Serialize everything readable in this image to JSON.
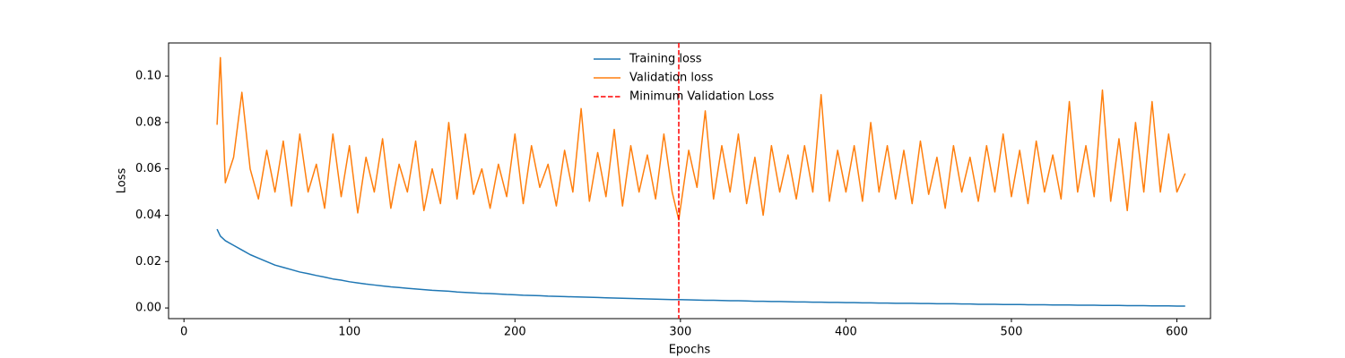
{
  "chart_data": {
    "type": "line",
    "xlabel": "Epochs",
    "ylabel": "Loss",
    "x": [
      20,
      22,
      25,
      30,
      35,
      40,
      45,
      50,
      55,
      60,
      65,
      70,
      75,
      80,
      85,
      90,
      95,
      100,
      105,
      110,
      115,
      120,
      125,
      130,
      135,
      140,
      145,
      150,
      155,
      160,
      165,
      170,
      175,
      180,
      185,
      190,
      195,
      200,
      205,
      210,
      215,
      220,
      225,
      230,
      235,
      240,
      245,
      250,
      255,
      260,
      265,
      270,
      275,
      280,
      285,
      290,
      295,
      299,
      305,
      310,
      315,
      320,
      325,
      330,
      335,
      340,
      345,
      350,
      355,
      360,
      365,
      370,
      375,
      380,
      385,
      390,
      395,
      400,
      405,
      410,
      415,
      420,
      425,
      430,
      435,
      440,
      445,
      450,
      455,
      460,
      465,
      470,
      475,
      480,
      485,
      490,
      495,
      500,
      505,
      510,
      515,
      520,
      525,
      530,
      535,
      540,
      545,
      550,
      555,
      560,
      565,
      570,
      575,
      580,
      585,
      590,
      595,
      600,
      605
    ],
    "series": [
      {
        "name": "Training loss",
        "color": "#1f77b4",
        "values": [
          0.034,
          0.031,
          0.029,
          0.027,
          0.025,
          0.023,
          0.0215,
          0.02,
          0.0185,
          0.0175,
          0.0165,
          0.0155,
          0.0148,
          0.014,
          0.0133,
          0.0125,
          0.012,
          0.0113,
          0.0108,
          0.0103,
          0.0099,
          0.0095,
          0.0091,
          0.0088,
          0.0085,
          0.0082,
          0.0079,
          0.0076,
          0.0074,
          0.0072,
          0.0069,
          0.0067,
          0.0065,
          0.0063,
          0.0062,
          0.006,
          0.0058,
          0.0057,
          0.0055,
          0.0054,
          0.0053,
          0.0051,
          0.005,
          0.0049,
          0.0048,
          0.0047,
          0.0046,
          0.0045,
          0.0044,
          0.0043,
          0.0042,
          0.0041,
          0.004,
          0.0039,
          0.0038,
          0.0037,
          0.0036,
          0.0036,
          0.0035,
          0.0034,
          0.0033,
          0.0033,
          0.0032,
          0.0031,
          0.0031,
          0.003,
          0.0029,
          0.0029,
          0.0028,
          0.0028,
          0.0027,
          0.0026,
          0.0026,
          0.0025,
          0.0025,
          0.0024,
          0.0024,
          0.0023,
          0.0023,
          0.0022,
          0.0022,
          0.0021,
          0.0021,
          0.002,
          0.002,
          0.002,
          0.0019,
          0.0019,
          0.0018,
          0.0018,
          0.0018,
          0.0017,
          0.0017,
          0.0016,
          0.0016,
          0.0016,
          0.0015,
          0.0015,
          0.0015,
          0.0014,
          0.0014,
          0.0014,
          0.0013,
          0.0013,
          0.0013,
          0.0012,
          0.0012,
          0.0012,
          0.0011,
          0.0011,
          0.0011,
          0.001,
          0.001,
          0.001,
          0.0009,
          0.0009,
          0.0009,
          0.0008,
          0.0008
        ]
      },
      {
        "name": "Validation loss",
        "color": "#ff7f0e",
        "values": [
          0.079,
          0.108,
          0.054,
          0.065,
          0.093,
          0.06,
          0.047,
          0.068,
          0.05,
          0.072,
          0.044,
          0.075,
          0.05,
          0.062,
          0.043,
          0.075,
          0.048,
          0.07,
          0.041,
          0.065,
          0.05,
          0.073,
          0.043,
          0.062,
          0.05,
          0.072,
          0.042,
          0.06,
          0.045,
          0.08,
          0.047,
          0.075,
          0.049,
          0.06,
          0.043,
          0.062,
          0.048,
          0.075,
          0.045,
          0.07,
          0.052,
          0.062,
          0.044,
          0.068,
          0.05,
          0.086,
          0.046,
          0.067,
          0.048,
          0.077,
          0.044,
          0.07,
          0.05,
          0.066,
          0.047,
          0.075,
          0.05,
          0.038,
          0.068,
          0.052,
          0.085,
          0.047,
          0.07,
          0.05,
          0.075,
          0.045,
          0.065,
          0.04,
          0.07,
          0.05,
          0.066,
          0.047,
          0.07,
          0.05,
          0.092,
          0.046,
          0.068,
          0.05,
          0.07,
          0.046,
          0.08,
          0.05,
          0.07,
          0.047,
          0.068,
          0.045,
          0.072,
          0.049,
          0.065,
          0.043,
          0.07,
          0.05,
          0.065,
          0.046,
          0.07,
          0.05,
          0.075,
          0.048,
          0.068,
          0.045,
          0.072,
          0.05,
          0.066,
          0.047,
          0.089,
          0.05,
          0.07,
          0.048,
          0.094,
          0.046,
          0.073,
          0.042,
          0.08,
          0.05,
          0.089,
          0.05,
          0.075,
          0.05,
          0.058
        ]
      }
    ],
    "vline": {
      "name": "Minimum Validation Loss",
      "x": 299,
      "color": "#ff0000"
    },
    "xlim": [
      -9.3,
      620.3
    ],
    "ylim": [
      -0.0046,
      0.1143
    ],
    "xticks": [
      0,
      100,
      200,
      300,
      400,
      500,
      600
    ],
    "yticks": [
      {
        "value": 0,
        "label": "0.00"
      },
      0.02,
      0.04,
      0.06,
      0.08,
      {
        "value": 0.1,
        "label": "0.10"
      }
    ],
    "legend": "upper center"
  }
}
